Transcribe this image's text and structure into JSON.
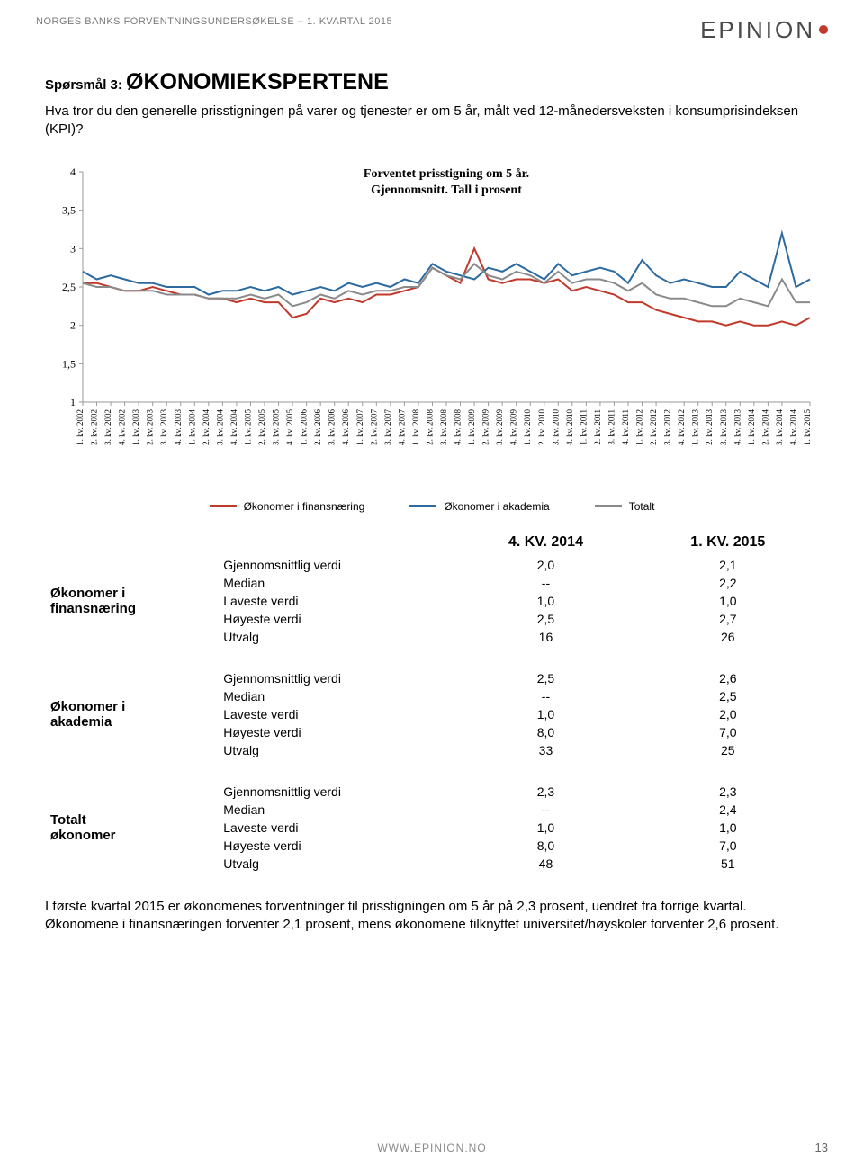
{
  "header": {
    "left": "NORGES BANKS FORVENTNINGSUNDERSØKELSE – 1. KVARTAL 2015",
    "logo_text": "EPINION"
  },
  "question": {
    "prefix": "Spørsmål 3:",
    "title": "ØKONOMIEKSPERTENE",
    "description": "Hva tror du den generelle prisstigningen på varer og tjenester er om 5 år, målt ved 12-månedersveksten i konsumprisindeksen (KPI)?"
  },
  "chart": {
    "title_line1": "Forventet prisstigning om 5 år.",
    "title_line2": "Gjennomsnitt. Tall i prosent",
    "ylim": [
      1,
      4
    ],
    "ytick_step": 0.5,
    "yticks": [
      "1",
      "1,5",
      "2",
      "2,5",
      "3",
      "3,5",
      "4"
    ],
    "background_color": "#ffffff",
    "axis_color": "#9a9a9a",
    "tick_font_size": 10,
    "x_labels": [
      "1. kv. 2002",
      "2. kv. 2002",
      "3. kv. 2002",
      "4. kv. 2002",
      "1. kv. 2003",
      "2. kv. 2003",
      "3. kv. 2003",
      "4. kv. 2003",
      "1. kv. 2004",
      "2. kv. 2004",
      "3. kv. 2004",
      "4. kv. 2004",
      "1. kv. 2005",
      "2. kv. 2005",
      "3. kv. 2005",
      "4. kv. 2005",
      "1. kv. 2006",
      "2. kv. 2006",
      "3. kv. 2006",
      "4. kv. 2006",
      "1. kv. 2007",
      "2. kv. 2007",
      "3. kv. 2007",
      "4. kv. 2007",
      "1. kv. 2008",
      "2. kv. 2008",
      "3. kv. 2008",
      "4. kv. 2008",
      "1. kv. 2009",
      "2. kv. 2009",
      "3. kv. 2009",
      "4. kv. 2009",
      "1. kv. 2010",
      "2. kv. 2010",
      "3. kv. 2010",
      "4. kv. 2010",
      "1. kv. 2011",
      "2. kv. 2011",
      "3. kv. 2011",
      "4. kv. 2011",
      "1. kv. 2012",
      "2. kv. 2012",
      "3. kv. 2012",
      "4. kv. 2012",
      "1. kv. 2013",
      "2. kv. 2013",
      "3. kv. 2013",
      "4. kv. 2013",
      "1. kv. 2014",
      "2. kv. 2014",
      "3. kv. 2014",
      "4. kv. 2014",
      "1. kv. 2015"
    ],
    "series": [
      {
        "name": "Økonomer i finansnæring",
        "color": "#c0392b",
        "width": 2,
        "values": [
          2.55,
          2.55,
          2.5,
          2.45,
          2.45,
          2.5,
          2.45,
          2.4,
          2.4,
          2.35,
          2.35,
          2.3,
          2.35,
          2.3,
          2.3,
          2.1,
          2.15,
          2.35,
          2.3,
          2.35,
          2.3,
          2.4,
          2.4,
          2.45,
          2.5,
          2.75,
          2.65,
          2.55,
          3.0,
          2.6,
          2.55,
          2.6,
          2.6,
          2.55,
          2.6,
          2.45,
          2.5,
          2.45,
          2.4,
          2.3,
          2.3,
          2.2,
          2.15,
          2.1,
          2.05,
          2.05,
          2.0,
          2.05,
          2.0,
          2.0,
          2.05,
          2.0,
          2.1
        ]
      },
      {
        "name": "Økonomer i akademia",
        "color": "#2c6aa0",
        "width": 2,
        "values": [
          2.7,
          2.6,
          2.65,
          2.6,
          2.55,
          2.55,
          2.5,
          2.5,
          2.5,
          2.4,
          2.45,
          2.45,
          2.5,
          2.45,
          2.5,
          2.4,
          2.45,
          2.5,
          2.45,
          2.55,
          2.5,
          2.55,
          2.5,
          2.6,
          2.55,
          2.8,
          2.7,
          2.65,
          2.6,
          2.75,
          2.7,
          2.8,
          2.7,
          2.6,
          2.8,
          2.65,
          2.7,
          2.75,
          2.7,
          2.55,
          2.85,
          2.65,
          2.55,
          2.6,
          2.55,
          2.5,
          2.5,
          2.7,
          2.6,
          2.5,
          3.2,
          2.5,
          2.6
        ]
      },
      {
        "name": "Totalt",
        "color": "#8a8a8a",
        "width": 2,
        "values": [
          2.55,
          2.5,
          2.5,
          2.45,
          2.45,
          2.45,
          2.4,
          2.4,
          2.4,
          2.35,
          2.35,
          2.35,
          2.4,
          2.35,
          2.4,
          2.25,
          2.3,
          2.4,
          2.35,
          2.45,
          2.4,
          2.45,
          2.45,
          2.5,
          2.5,
          2.75,
          2.65,
          2.6,
          2.8,
          2.65,
          2.6,
          2.7,
          2.65,
          2.55,
          2.7,
          2.55,
          2.6,
          2.6,
          2.55,
          2.45,
          2.55,
          2.4,
          2.35,
          2.35,
          2.3,
          2.25,
          2.25,
          2.35,
          2.3,
          2.25,
          2.6,
          2.3,
          2.3
        ]
      }
    ],
    "legend": [
      "Økonomer i finansnæring",
      "Økonomer i akademia",
      "Totalt"
    ]
  },
  "table": {
    "headers": [
      "4. KV. 2014",
      "1. KV. 2015"
    ],
    "row_labels": [
      "Gjennomsnittlig verdi",
      "Median",
      "Laveste verdi",
      "Høyeste verdi",
      "Utvalg"
    ],
    "groups": [
      {
        "name": "Økonomer i finansnæring",
        "rows": [
          [
            "2,0",
            "2,1"
          ],
          [
            "--",
            "2,2"
          ],
          [
            "1,0",
            "1,0"
          ],
          [
            "2,5",
            "2,7"
          ],
          [
            "16",
            "26"
          ]
        ]
      },
      {
        "name": "Økonomer i akademia",
        "rows": [
          [
            "2,5",
            "2,6"
          ],
          [
            "--",
            "2,5"
          ],
          [
            "1,0",
            "2,0"
          ],
          [
            "8,0",
            "7,0"
          ],
          [
            "33",
            "25"
          ]
        ]
      },
      {
        "name": "Totalt økonomer",
        "rows": [
          [
            "2,3",
            "2,3"
          ],
          [
            "--",
            "2,4"
          ],
          [
            "1,0",
            "1,0"
          ],
          [
            "8,0",
            "7,0"
          ],
          [
            "48",
            "51"
          ]
        ]
      }
    ]
  },
  "bottom_text": "I første kvartal 2015 er økonomenes forventninger til prisstigningen om 5 år på 2,3 prosent, uendret fra forrige kvartal. Økonomene i finansnæringen forventer 2,1 prosent, mens økonomene tilknyttet universitet/høyskoler forventer 2,6 prosent.",
  "footer": {
    "site": "WWW.EPINION.NO",
    "page": "13"
  }
}
